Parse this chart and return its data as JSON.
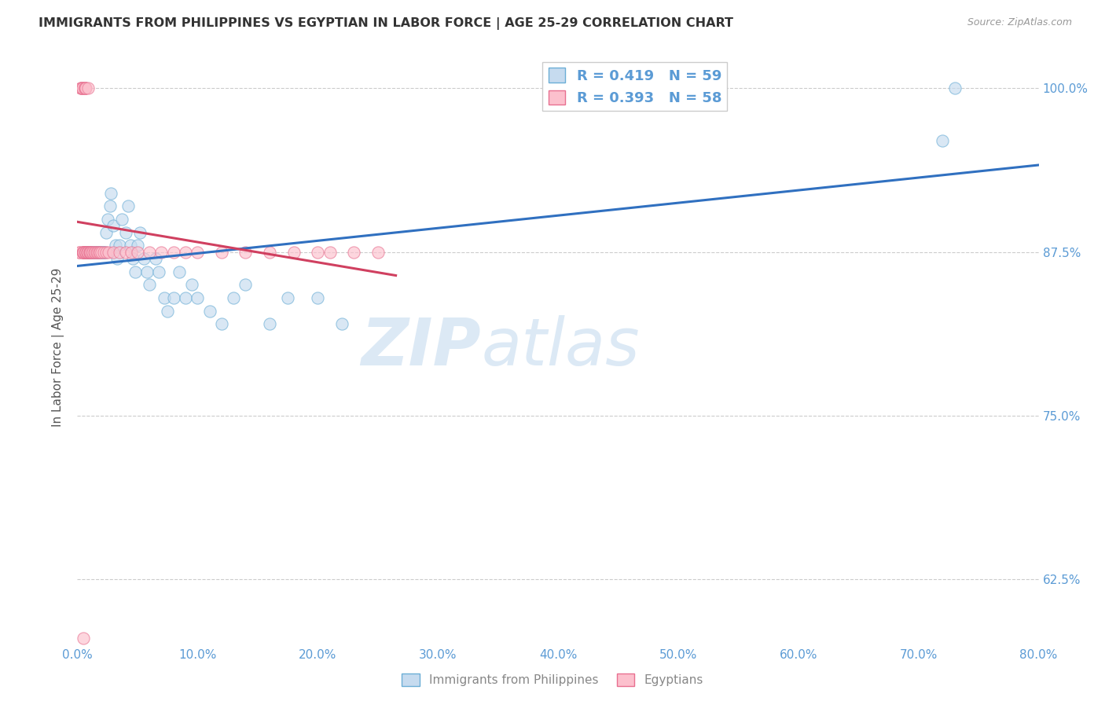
{
  "title": "IMMIGRANTS FROM PHILIPPINES VS EGYPTIAN IN LABOR FORCE | AGE 25-29 CORRELATION CHART",
  "source": "Source: ZipAtlas.com",
  "xlim": [
    0.0,
    0.8
  ],
  "ylim": [
    0.575,
    1.03
  ],
  "ylabel": "In Labor Force | Age 25-29",
  "phil_R": "0.419",
  "phil_N": "59",
  "egypt_R": "0.393",
  "egypt_N": "58",
  "legend_phil_label": "Immigrants from Philippines",
  "legend_egypt_label": "Egyptians",
  "phil_color": "#6baed6",
  "phil_fill": "#c6dbef",
  "egypt_color": "#e87090",
  "egypt_fill": "#fcc0cd",
  "trend_phil_color": "#3070c0",
  "trend_egypt_color": "#d04060",
  "background_color": "#ffffff",
  "grid_color": "#cccccc",
  "title_color": "#333333",
  "axis_color": "#5b9bd5",
  "watermark_zip": "ZIP",
  "watermark_atlas": "atlas",
  "watermark_color": "#dce9f5",
  "scatter_size": 120,
  "scatter_alpha": 0.65,
  "philippines_x": [
    0.005,
    0.006,
    0.007,
    0.008,
    0.008,
    0.009,
    0.01,
    0.01,
    0.011,
    0.012,
    0.013,
    0.014,
    0.015,
    0.016,
    0.017,
    0.018,
    0.019,
    0.02,
    0.021,
    0.022,
    0.023,
    0.024,
    0.025,
    0.027,
    0.028,
    0.03,
    0.032,
    0.033,
    0.035,
    0.037,
    0.04,
    0.042,
    0.044,
    0.046,
    0.048,
    0.05,
    0.052,
    0.055,
    0.058,
    0.06,
    0.065,
    0.068,
    0.072,
    0.075,
    0.08,
    0.085,
    0.09,
    0.095,
    0.1,
    0.11,
    0.12,
    0.13,
    0.14,
    0.16,
    0.175,
    0.2,
    0.22,
    0.72,
    0.73
  ],
  "philippines_y": [
    0.875,
    0.875,
    0.875,
    0.875,
    0.875,
    0.875,
    0.875,
    0.875,
    0.875,
    0.875,
    0.875,
    0.875,
    0.875,
    0.875,
    0.875,
    0.875,
    0.875,
    0.875,
    0.875,
    0.875,
    0.875,
    0.89,
    0.9,
    0.91,
    0.92,
    0.895,
    0.88,
    0.87,
    0.88,
    0.9,
    0.89,
    0.91,
    0.88,
    0.87,
    0.86,
    0.88,
    0.89,
    0.87,
    0.86,
    0.85,
    0.87,
    0.86,
    0.84,
    0.83,
    0.84,
    0.86,
    0.84,
    0.85,
    0.84,
    0.83,
    0.82,
    0.84,
    0.85,
    0.82,
    0.84,
    0.84,
    0.82,
    0.96,
    1.0
  ],
  "egyptians_x": [
    0.002,
    0.002,
    0.003,
    0.003,
    0.003,
    0.004,
    0.004,
    0.004,
    0.005,
    0.005,
    0.005,
    0.005,
    0.006,
    0.006,
    0.006,
    0.006,
    0.007,
    0.007,
    0.007,
    0.008,
    0.008,
    0.009,
    0.009,
    0.01,
    0.01,
    0.011,
    0.011,
    0.012,
    0.013,
    0.014,
    0.015,
    0.016,
    0.017,
    0.018,
    0.019,
    0.02,
    0.022,
    0.024,
    0.026,
    0.03,
    0.035,
    0.04,
    0.045,
    0.05,
    0.06,
    0.07,
    0.08,
    0.09,
    0.1,
    0.12,
    0.14,
    0.16,
    0.18,
    0.2,
    0.21,
    0.23,
    0.25,
    0.005
  ],
  "egyptians_y": [
    0.875,
    0.875,
    1.0,
    1.0,
    1.0,
    1.0,
    1.0,
    0.875,
    0.875,
    0.875,
    0.875,
    0.875,
    1.0,
    1.0,
    1.0,
    0.875,
    0.875,
    0.875,
    1.0,
    0.875,
    0.875,
    0.875,
    1.0,
    0.875,
    0.875,
    0.875,
    0.875,
    0.875,
    0.875,
    0.875,
    0.875,
    0.875,
    0.875,
    0.875,
    0.875,
    0.875,
    0.875,
    0.875,
    0.875,
    0.875,
    0.875,
    0.875,
    0.875,
    0.875,
    0.875,
    0.875,
    0.875,
    0.875,
    0.875,
    0.875,
    0.875,
    0.875,
    0.875,
    0.875,
    0.875,
    0.875,
    0.875,
    0.58
  ]
}
